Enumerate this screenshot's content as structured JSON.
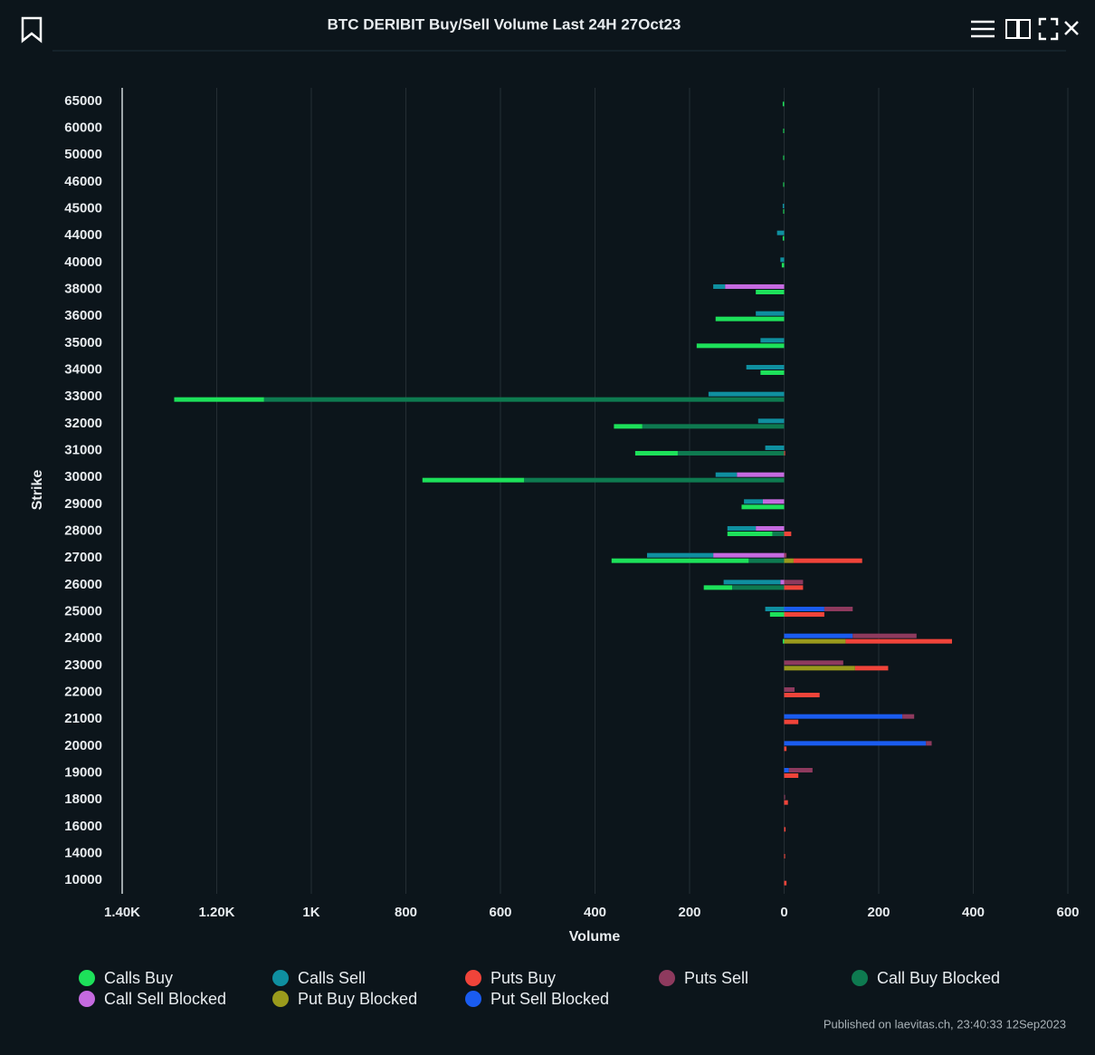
{
  "chart_data": {
    "type": "bar",
    "orientation": "horizontal",
    "stacked": true,
    "title": "BTC DERIBIT Buy/Sell Volume Last 24H 27Oct23",
    "y_label": "Strike",
    "x_label": "Volume",
    "categories": [
      "65000",
      "60000",
      "50000",
      "46000",
      "45000",
      "44000",
      "40000",
      "38000",
      "36000",
      "35000",
      "34000",
      "33000",
      "32000",
      "31000",
      "30000",
      "29000",
      "28000",
      "27000",
      "26000",
      "25000",
      "24000",
      "23000",
      "22000",
      "21000",
      "20000",
      "19000",
      "18000",
      "16000",
      "14000",
      "10000"
    ],
    "xlim": [
      -1400,
      600
    ],
    "xticks": [
      {
        "value": -1400,
        "label": "1.40K"
      },
      {
        "value": -1200,
        "label": "1.20K"
      },
      {
        "value": -1000,
        "label": "1K"
      },
      {
        "value": -800,
        "label": "800"
      },
      {
        "value": -600,
        "label": "600"
      },
      {
        "value": -400,
        "label": "400"
      },
      {
        "value": -200,
        "label": "200"
      },
      0,
      200,
      400,
      600
    ],
    "grid": true,
    "series": [
      {
        "name": "Calls Buy",
        "color": "#1de15a",
        "stack": "buy",
        "values": [
          -3,
          -2,
          -2,
          -2,
          -2,
          -3,
          -5,
          -60,
          -145,
          -185,
          -50,
          -190,
          -60,
          -90,
          -215,
          -90,
          -95,
          -290,
          -60,
          -30,
          -3,
          0,
          0,
          0,
          0,
          0,
          0,
          0,
          0,
          0
        ]
      },
      {
        "name": "Calls Sell",
        "color": "#0f8fa0",
        "stack": "sell",
        "values": [
          0,
          0,
          0,
          0,
          -3,
          -15,
          -8,
          -25,
          -60,
          -50,
          -80,
          -160,
          -55,
          -40,
          -45,
          -40,
          -60,
          -140,
          -120,
          -40,
          0,
          0,
          0,
          0,
          0,
          0,
          0,
          0,
          0,
          0
        ]
      },
      {
        "name": "Puts Buy",
        "color": "#f0443a",
        "stack": "buy",
        "values": [
          0,
          0,
          0,
          0,
          0,
          0,
          0,
          0,
          0,
          0,
          0,
          0,
          0,
          2,
          0,
          0,
          15,
          145,
          40,
          85,
          225,
          70,
          75,
          30,
          5,
          30,
          8,
          3,
          2,
          5
        ]
      },
      {
        "name": "Puts Sell",
        "color": "#8e3a5e",
        "stack": "sell",
        "values": [
          0,
          0,
          0,
          0,
          0,
          0,
          0,
          0,
          0,
          0,
          0,
          0,
          0,
          0,
          0,
          0,
          0,
          5,
          40,
          60,
          135,
          125,
          22,
          25,
          12,
          50,
          2,
          0,
          0,
          0
        ]
      },
      {
        "name": "Call Buy Blocked",
        "color": "#0e7a50",
        "stack": "buy",
        "values": [
          0,
          0,
          0,
          0,
          0,
          0,
          0,
          0,
          0,
          0,
          0,
          -1100,
          -300,
          -225,
          -550,
          0,
          -25,
          -75,
          -110,
          0,
          0,
          0,
          0,
          0,
          0,
          0,
          0,
          0,
          0,
          0
        ]
      },
      {
        "name": "Call Sell Blocked",
        "color": "#c56ae0",
        "stack": "sell",
        "values": [
          0,
          0,
          0,
          0,
          0,
          0,
          0,
          -125,
          0,
          0,
          0,
          0,
          0,
          0,
          -100,
          -45,
          -60,
          -150,
          -8,
          0,
          0,
          0,
          0,
          0,
          0,
          0,
          0,
          0,
          0,
          0
        ]
      },
      {
        "name": "Put Buy Blocked",
        "color": "#9a9a1c",
        "stack": "buy",
        "values": [
          0,
          0,
          0,
          0,
          0,
          0,
          0,
          0,
          0,
          0,
          0,
          0,
          0,
          0,
          0,
          0,
          0,
          20,
          0,
          0,
          130,
          150,
          0,
          0,
          0,
          0,
          0,
          0,
          0,
          0
        ]
      },
      {
        "name": "Put Sell Blocked",
        "color": "#1a5cf0",
        "stack": "sell",
        "values": [
          0,
          0,
          0,
          0,
          0,
          0,
          0,
          0,
          0,
          0,
          0,
          0,
          0,
          0,
          0,
          0,
          0,
          0,
          0,
          85,
          145,
          0,
          0,
          250,
          300,
          10,
          0,
          0,
          0,
          0
        ]
      }
    ]
  },
  "published": "Published on laevitas.ch, 23:40:33 12Sep2023"
}
